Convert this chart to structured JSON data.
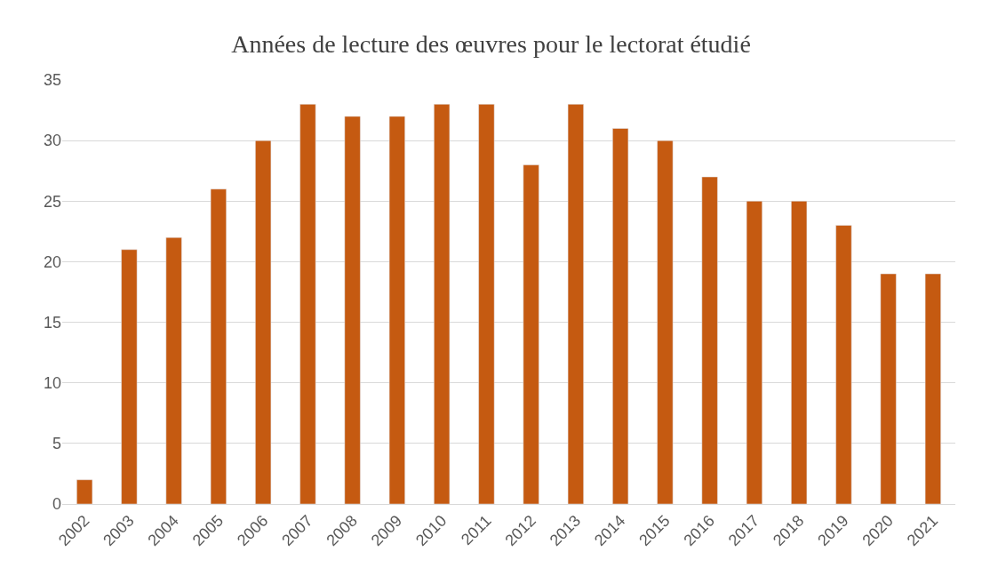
{
  "chart_data": {
    "type": "bar",
    "title": "Années de lecture des œuvres pour le lectorat étudié",
    "categories": [
      "2002",
      "2003",
      "2004",
      "2005",
      "2006",
      "2007",
      "2008",
      "2009",
      "2010",
      "2011",
      "2012",
      "2013",
      "2014",
      "2015",
      "2016",
      "2017",
      "2018",
      "2019",
      "2020",
      "2021"
    ],
    "values": [
      2,
      21,
      22,
      26,
      30,
      33,
      32,
      32,
      33,
      33,
      28,
      33,
      31,
      30,
      27,
      25,
      25,
      23,
      19,
      19
    ],
    "color": "#c55a11",
    "ylim": [
      0,
      35
    ],
    "yticks": [
      0,
      5,
      10,
      15,
      20,
      25,
      30,
      35
    ],
    "grid": "y"
  }
}
